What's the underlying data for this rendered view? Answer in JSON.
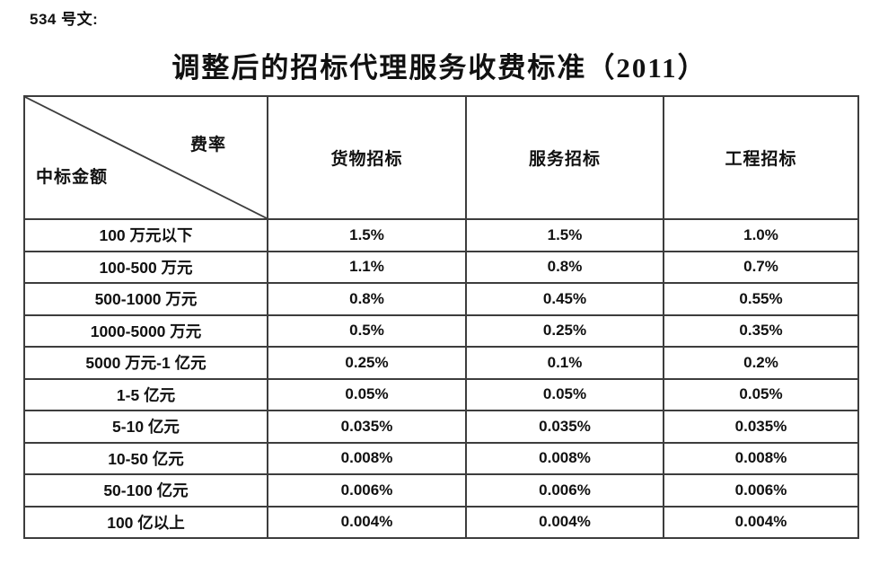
{
  "document": {
    "doc_label": "534 号文:",
    "title": "调整后的招标代理服务收费标准（2011）"
  },
  "table": {
    "corner": {
      "rate_label": "费率",
      "amount_label": "中标金额"
    },
    "columns": [
      "货物招标",
      "服务招标",
      "工程招标"
    ],
    "rows": [
      {
        "amount": "100 万元以下",
        "goods": "1.5%",
        "service": "1.5%",
        "engineering": "1.0%"
      },
      {
        "amount": "100-500 万元",
        "goods": "1.1%",
        "service": "0.8%",
        "engineering": "0.7%"
      },
      {
        "amount": "500-1000 万元",
        "goods": "0.8%",
        "service": "0.45%",
        "engineering": "0.55%"
      },
      {
        "amount": "1000-5000 万元",
        "goods": "0.5%",
        "service": "0.25%",
        "engineering": "0.35%"
      },
      {
        "amount": "5000 万元-1 亿元",
        "goods": "0.25%",
        "service": "0.1%",
        "engineering": "0.2%"
      },
      {
        "amount": "1-5 亿元",
        "goods": "0.05%",
        "service": "0.05%",
        "engineering": "0.05%"
      },
      {
        "amount": "5-10 亿元",
        "goods": "0.035%",
        "service": "0.035%",
        "engineering": "0.035%"
      },
      {
        "amount": "10-50 亿元",
        "goods": "0.008%",
        "service": "0.008%",
        "engineering": "0.008%"
      },
      {
        "amount": "50-100 亿元",
        "goods": "0.006%",
        "service": "0.006%",
        "engineering": "0.006%"
      },
      {
        "amount": "100 亿以上",
        "goods": "0.004%",
        "service": "0.004%",
        "engineering": "0.004%"
      }
    ]
  },
  "colors": {
    "background": "#ffffff",
    "text": "#111111",
    "border": "#3d3d3d"
  }
}
